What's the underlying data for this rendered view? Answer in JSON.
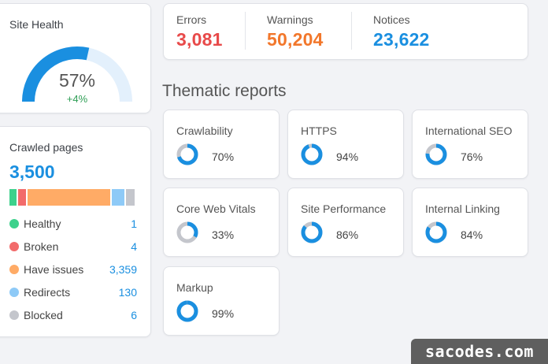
{
  "site_health": {
    "title": "Site Health",
    "percent": "57%",
    "percent_value": 57,
    "delta": "+4%"
  },
  "summary": {
    "errors": {
      "label": "Errors",
      "value": "3,081",
      "color": "#e84a4a"
    },
    "warnings": {
      "label": "Warnings",
      "value": "50,204",
      "color": "#f2772b"
    },
    "notices": {
      "label": "Notices",
      "value": "23,622",
      "color": "#1a8fe0"
    }
  },
  "thematic": {
    "title": "Thematic reports",
    "reports": [
      {
        "name": "Crawlability",
        "percent": "70%",
        "value": 70
      },
      {
        "name": "HTTPS",
        "percent": "94%",
        "value": 94
      },
      {
        "name": "International SEO",
        "percent": "76%",
        "value": 76
      },
      {
        "name": "Core Web Vitals",
        "percent": "33%",
        "value": 33
      },
      {
        "name": "Site Performance",
        "percent": "86%",
        "value": 86
      },
      {
        "name": "Internal Linking",
        "percent": "84%",
        "value": 84
      },
      {
        "name": "Markup",
        "percent": "99%",
        "value": 99
      }
    ]
  },
  "crawled": {
    "title": "Crawled pages",
    "total": "3,500",
    "rows": [
      {
        "name": "Healthy",
        "count": "1",
        "color": "#3dd18c"
      },
      {
        "name": "Broken",
        "count": "4",
        "color": "#f26b6b"
      },
      {
        "name": "Have issues",
        "count": "3,359",
        "color": "#ffab66"
      },
      {
        "name": "Redirects",
        "count": "130",
        "color": "#8ecaf7"
      },
      {
        "name": "Blocked",
        "count": "6",
        "color": "#c4c6cc"
      }
    ]
  },
  "watermark": "sacodes.com"
}
